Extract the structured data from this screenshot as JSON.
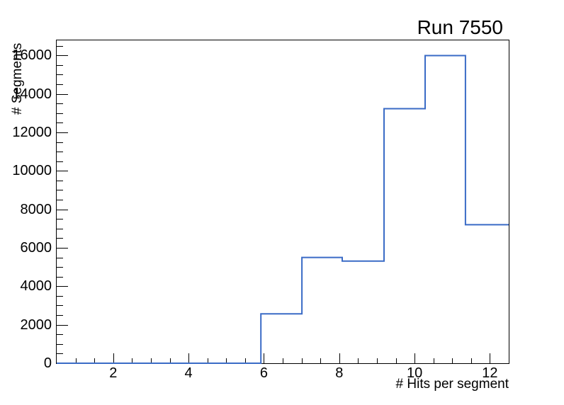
{
  "page": {
    "background_color": "#ffffff",
    "text_color": "#000000"
  },
  "chart_data": {
    "type": "histogram-step",
    "title": "Run 7550",
    "xlabel": "# Hits per segment",
    "ylabel": "# Segments",
    "xlim": [
      0.5,
      12.5
    ],
    "ylim": [
      0,
      16800
    ],
    "x_major_ticks": [
      2,
      4,
      6,
      8,
      10,
      12
    ],
    "x_minor_step": 0.5,
    "y_major_ticks": [
      0,
      2000,
      4000,
      6000,
      8000,
      10000,
      12000,
      14000,
      16000
    ],
    "y_minor_step": 500,
    "grid": false,
    "legend": false,
    "line_color": "#3a6bc6",
    "axis_color": "#000000",
    "bins": [
      {
        "x0": 0.5,
        "x1": 5.92,
        "count": 0
      },
      {
        "x0": 5.92,
        "x1": 7.01,
        "count": 2570
      },
      {
        "x0": 7.01,
        "x1": 8.08,
        "count": 5500
      },
      {
        "x0": 8.08,
        "x1": 9.19,
        "count": 5310
      },
      {
        "x0": 9.19,
        "x1": 10.28,
        "count": 13230
      },
      {
        "x0": 10.28,
        "x1": 11.35,
        "count": 15990
      },
      {
        "x0": 11.35,
        "x1": 12.5,
        "count": 7200
      }
    ]
  }
}
